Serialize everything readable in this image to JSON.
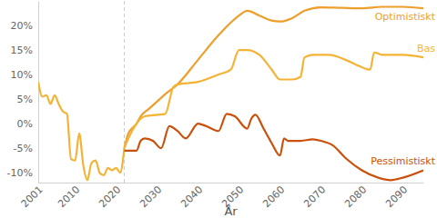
{
  "chart_data": {
    "type": "line",
    "x_label": "År",
    "xlim": [
      2001,
      2095
    ],
    "xticks": [
      2001,
      2010,
      2020,
      2030,
      2040,
      2050,
      2060,
      2070,
      2080,
      2090
    ],
    "ylim": [
      -12,
      25
    ],
    "yticks": [
      {
        "value": -10,
        "label": "-10%"
      },
      {
        "value": -5,
        "label": "-5%"
      },
      {
        "value": 0,
        "label": "0%"
      },
      {
        "value": 5,
        "label": "5%"
      },
      {
        "value": 10,
        "label": "10%"
      },
      {
        "value": 15,
        "label": "15%"
      },
      {
        "value": 20,
        "label": "20%"
      }
    ],
    "grid": false,
    "forecast_start": 2022,
    "series": [
      {
        "color": "#F5B335",
        "x": [
          2001,
          2002,
          2003,
          2004,
          2005,
          2006,
          2007,
          2008,
          2009,
          2010,
          2011,
          2012,
          2013,
          2014,
          2015,
          2016,
          2017,
          2018,
          2019,
          2020,
          2021,
          2022
        ],
        "values": [
          8.5,
          5.5,
          5.8,
          4,
          5.8,
          4,
          2.5,
          2,
          -7.2,
          -7.5,
          -2,
          -8.5,
          -11.5,
          -8,
          -7.5,
          -10,
          -10.5,
          -9,
          -9.5,
          -9,
          -10,
          -5
        ]
      },
      {
        "name": "Optimistiskt",
        "color": "#EE9E2B",
        "x": [
          2022,
          2023,
          2025,
          2026,
          2028,
          2030,
          2032,
          2035,
          2040,
          2045,
          2050,
          2052,
          2055,
          2058,
          2060,
          2063,
          2066,
          2070,
          2075,
          2080,
          2085,
          2090,
          2095
        ],
        "values": [
          -5,
          -2,
          0,
          1.5,
          3,
          4.5,
          6,
          8,
          13,
          18,
          22,
          23,
          22,
          21,
          20.8,
          21.5,
          23,
          23.7,
          23.6,
          23.5,
          23.8,
          23.8,
          23.5
        ]
      },
      {
        "name": "Bas",
        "color": "#F5B335",
        "x": [
          2022,
          2023,
          2025,
          2026,
          2027,
          2030,
          2032,
          2034,
          2035,
          2040,
          2045,
          2048,
          2050,
          2052,
          2055,
          2058,
          2060,
          2063,
          2065,
          2066,
          2068,
          2072,
          2076,
          2080,
          2082,
          2083,
          2085,
          2090,
          2095
        ],
        "values": [
          -5,
          -3,
          0,
          1,
          1.5,
          1.8,
          2,
          7.5,
          8,
          8.5,
          10,
          11,
          15,
          15,
          14,
          11,
          9,
          9,
          9.5,
          13.5,
          14,
          14,
          13,
          11.5,
          11,
          14.5,
          14,
          14,
          13.5
        ]
      },
      {
        "name": "Pessimistiskt",
        "color": "#C9510C",
        "x": [
          2022,
          2025,
          2026,
          2027,
          2029,
          2031,
          2033,
          2035,
          2037,
          2040,
          2042,
          2045,
          2047,
          2049,
          2052,
          2053,
          2054,
          2056,
          2058,
          2060,
          2061,
          2062,
          2065,
          2068,
          2070,
          2073,
          2076,
          2080,
          2084,
          2087,
          2090,
          2095
        ],
        "values": [
          -5.5,
          -5.5,
          -3.5,
          -3,
          -3.5,
          -5,
          -0.5,
          -1.5,
          -3,
          0,
          -0.5,
          -1.5,
          2,
          1.5,
          -1,
          1,
          1.8,
          -1,
          -4,
          -6.5,
          -3,
          -3.5,
          -3.5,
          -3.2,
          -3.5,
          -4.5,
          -7,
          -9.5,
          -11,
          -11.5,
          -11,
          -9.5
        ]
      }
    ]
  }
}
